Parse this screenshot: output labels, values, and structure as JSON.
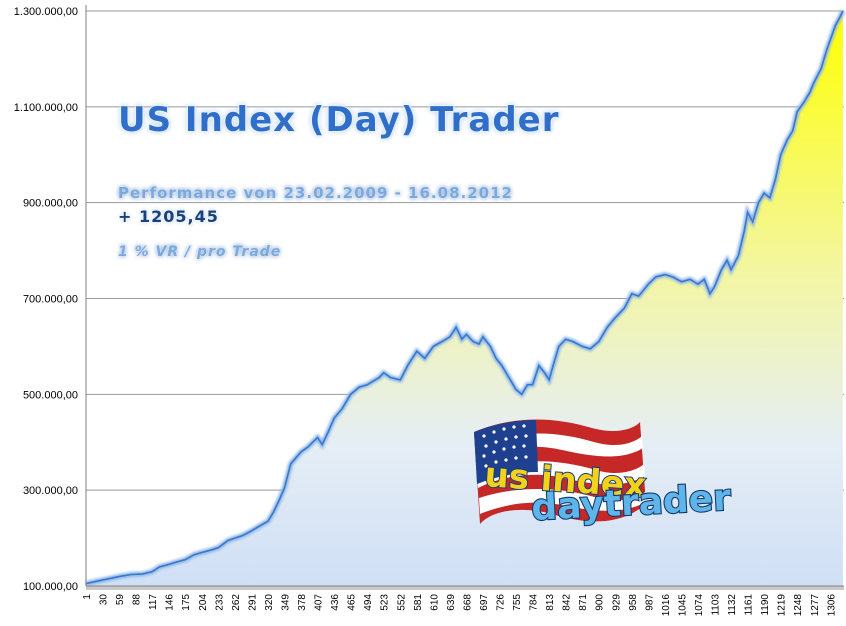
{
  "chart_data": {
    "type": "area",
    "title": "US Index (Day) Trader",
    "subtitle": "Performance  von  23.02.2009 - 16.08.2012",
    "gain": "+ 1205,45",
    "risk_note": "1 % VR / pro Trade",
    "ylim": [
      100000,
      1300000
    ],
    "xlim": [
      1,
      1330
    ],
    "y_ticks": [
      {
        "value": 100000,
        "label": "100.000,00"
      },
      {
        "value": 300000,
        "label": "300.000,00"
      },
      {
        "value": 500000,
        "label": "500.000,00"
      },
      {
        "value": 700000,
        "label": "700.000,00"
      },
      {
        "value": 900000,
        "label": "900.000,00"
      },
      {
        "value": 1100000,
        "label": "1.100.000,00"
      },
      {
        "value": 1300000,
        "label": "1.300.000,00"
      }
    ],
    "x_ticks": [
      "1",
      "30",
      "59",
      "88",
      "117",
      "146",
      "175",
      "204",
      "233",
      "262",
      "291",
      "320",
      "349",
      "378",
      "407",
      "436",
      "465",
      "494",
      "523",
      "552",
      "581",
      "610",
      "639",
      "668",
      "697",
      "726",
      "755",
      "784",
      "813",
      "842",
      "871",
      "900",
      "929",
      "958",
      "987",
      "1016",
      "1045",
      "1074",
      "1103",
      "1132",
      "1161",
      "1190",
      "1219",
      "1248",
      "1277",
      "1306"
    ],
    "grid": true,
    "legend": "none",
    "series": [
      {
        "x": [
          1,
          20,
          40,
          60,
          80,
          100,
          117,
          130,
          146,
          160,
          175,
          190,
          204,
          220,
          233,
          250,
          262,
          275,
          291,
          305,
          320,
          330,
          340,
          349,
          360,
          378,
          390,
          407,
          415,
          425,
          436,
          450,
          465,
          480,
          494,
          505,
          515,
          523,
          535,
          552,
          565,
          581,
          595,
          610,
          625,
          639,
          650,
          660,
          668,
          680,
          690,
          697,
          710,
          720,
          730,
          740,
          755,
          765,
          775,
          784,
          795,
          805,
          813,
          820,
          830,
          842,
          855,
          871,
          885,
          900,
          915,
          929,
          945,
          958,
          970,
          987,
          1000,
          1016,
          1030,
          1045,
          1060,
          1074,
          1085,
          1095,
          1103,
          1115,
          1125,
          1132,
          1145,
          1155,
          1161,
          1170,
          1180,
          1190,
          1200,
          1210,
          1219,
          1230,
          1240,
          1248,
          1260,
          1270,
          1277,
          1290,
          1300,
          1306,
          1315,
          1322,
          1328
        ],
        "y": [
          105000,
          110000,
          115000,
          120000,
          124000,
          125000,
          130000,
          140000,
          145000,
          150000,
          155000,
          165000,
          170000,
          175000,
          180000,
          195000,
          200000,
          205000,
          215000,
          225000,
          235000,
          255000,
          280000,
          305000,
          355000,
          380000,
          390000,
          410000,
          395000,
          420000,
          450000,
          470000,
          500000,
          515000,
          520000,
          528000,
          535000,
          545000,
          535000,
          530000,
          560000,
          590000,
          575000,
          600000,
          610000,
          620000,
          640000,
          615000,
          625000,
          610000,
          605000,
          620000,
          600000,
          575000,
          560000,
          540000,
          510000,
          500000,
          520000,
          520000,
          560000,
          545000,
          530000,
          560000,
          600000,
          615000,
          610000,
          600000,
          595000,
          610000,
          640000,
          660000,
          680000,
          710000,
          705000,
          730000,
          745000,
          750000,
          745000,
          735000,
          740000,
          730000,
          740000,
          710000,
          725000,
          760000,
          780000,
          760000,
          790000,
          840000,
          880000,
          860000,
          900000,
          920000,
          910000,
          950000,
          1000000,
          1030000,
          1050000,
          1090000,
          1110000,
          1130000,
          1150000,
          1180000,
          1220000,
          1240000,
          1270000,
          1285000,
          1300000
        ]
      }
    ]
  },
  "logo": {
    "line1": "us index",
    "line2": "daytrader"
  },
  "colors": {
    "area_top": "#ffff00",
    "area_bottom": "#dbe7f8",
    "line": "#3a78c8",
    "grid": "#9a9a9a",
    "title": "#2f6fc9"
  }
}
